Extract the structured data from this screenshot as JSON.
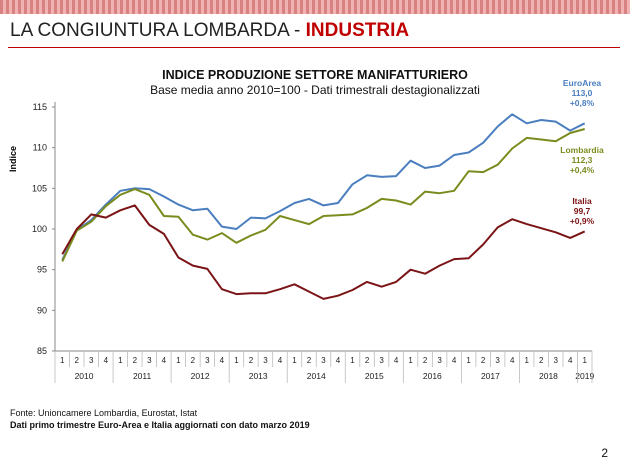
{
  "slide": {
    "title_prefix": "LA CONGIUNTURA LOMBARDA - ",
    "title_highlight": "INDUSTRIA",
    "page_number": "2"
  },
  "footer": {
    "source": "Fonte: Unioncamere  Lombardia,  Eurostat, Istat",
    "note": "Dati primo trimestre  Euro-Area  e Italia  aggiornati  con dato marzo 2019"
  },
  "colors": {
    "euroarea": "#4a7ebf",
    "lombardia": "#7a8c1e",
    "italia": "#7b1416",
    "accent": "#c00000"
  },
  "chart_data": {
    "type": "line",
    "title": "INDICE PRODUZIONE SETTORE MANIFATTURIERO",
    "subtitle": "Base media anno 2010=100 - Dati trimestrali destagionalizzati",
    "ylabel": "Indice",
    "ylim": [
      85,
      115
    ],
    "yticks": [
      85,
      90,
      95,
      100,
      105,
      110,
      115
    ],
    "quarters": [
      "1",
      "2",
      "3",
      "4",
      "1",
      "2",
      "3",
      "4",
      "1",
      "2",
      "3",
      "4",
      "1",
      "2",
      "3",
      "4",
      "1",
      "2",
      "3",
      "4",
      "1",
      "2",
      "3",
      "4",
      "1",
      "2",
      "3",
      "4",
      "1",
      "2",
      "3",
      "4",
      "1",
      "2",
      "3",
      "4",
      "1"
    ],
    "years": [
      {
        "label": "2010",
        "start": 0,
        "span": 4
      },
      {
        "label": "2011",
        "start": 4,
        "span": 4
      },
      {
        "label": "2012",
        "start": 8,
        "span": 4
      },
      {
        "label": "2013",
        "start": 12,
        "span": 4
      },
      {
        "label": "2014",
        "start": 16,
        "span": 4
      },
      {
        "label": "2015",
        "start": 20,
        "span": 4
      },
      {
        "label": "2016",
        "start": 24,
        "span": 4
      },
      {
        "label": "2017",
        "start": 28,
        "span": 4
      },
      {
        "label": "2018",
        "start": 32,
        "span": 4
      },
      {
        "label": "2019",
        "start": 36,
        "span": 1
      }
    ],
    "series": [
      {
        "name": "EuroArea",
        "color_key": "euroarea",
        "label_value": "113,0",
        "label_change": "+0,8%",
        "values": [
          96.2,
          99.9,
          101.1,
          103.0,
          104.7,
          105.0,
          104.9,
          104.0,
          103.0,
          102.3,
          102.5,
          100.3,
          100.0,
          101.4,
          101.3,
          102.2,
          103.2,
          103.7,
          102.9,
          103.2,
          105.5,
          106.6,
          106.4,
          106.5,
          108.4,
          107.5,
          107.8,
          109.1,
          109.4,
          110.6,
          112.6,
          114.1,
          113.0,
          113.4,
          113.2,
          112.1,
          113.0
        ]
      },
      {
        "name": "Lombardia",
        "color_key": "lombardia",
        "label_value": "112,3",
        "label_change": "+0,4%",
        "values": [
          96.0,
          99.8,
          100.9,
          102.8,
          104.2,
          104.9,
          104.2,
          101.6,
          101.5,
          99.3,
          98.7,
          99.5,
          98.3,
          99.2,
          99.9,
          101.6,
          101.1,
          100.6,
          101.6,
          101.7,
          101.8,
          102.6,
          103.7,
          103.5,
          103.0,
          104.6,
          104.4,
          104.7,
          107.1,
          107.0,
          107.9,
          109.9,
          111.2,
          111.0,
          110.8,
          111.8,
          112.3
        ]
      },
      {
        "name": "Italia",
        "color_key": "italia",
        "label_value": "99,7",
        "label_change": "+0,9%",
        "values": [
          96.9,
          100.0,
          101.8,
          101.4,
          102.3,
          102.9,
          100.5,
          99.4,
          96.5,
          95.5,
          95.1,
          92.6,
          92.0,
          92.1,
          92.1,
          92.6,
          93.2,
          92.3,
          91.4,
          91.8,
          92.5,
          93.5,
          92.9,
          93.5,
          95.0,
          94.5,
          95.5,
          96.3,
          96.4,
          98.1,
          100.2,
          101.2,
          100.6,
          100.1,
          99.6,
          98.9,
          99.7
        ]
      }
    ]
  }
}
